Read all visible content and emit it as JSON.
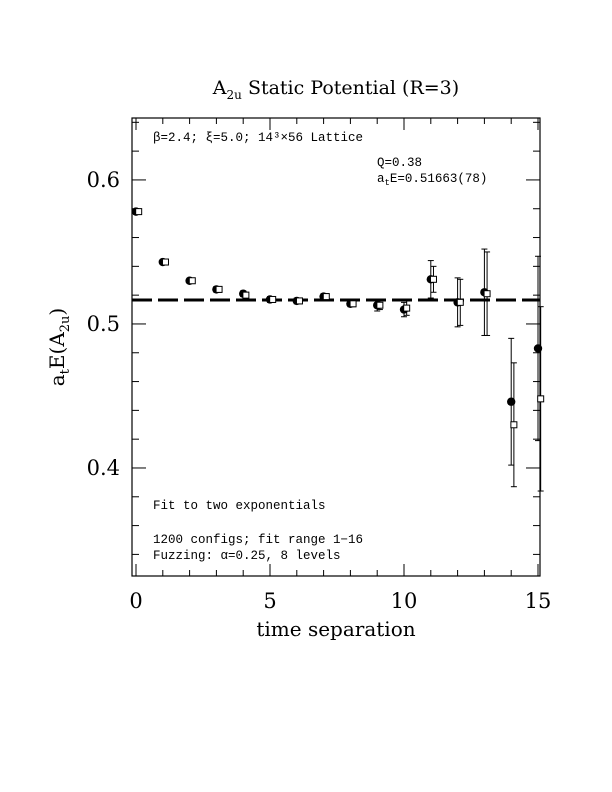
{
  "chart_data": {
    "type": "scatter",
    "title": "A_{2u} Static Potential (R=3)",
    "title_main": "A",
    "title_sub": "2u",
    "title_rest": " Static Potential (R=3)",
    "xlabel": "time separation",
    "ylabel_main": "a",
    "ylabel_sub1": "t",
    "ylabel_mid": "E(A",
    "ylabel_sub2": "2u",
    "ylabel_end": ")",
    "xlim": [
      0,
      15
    ],
    "ylim": [
      0.325,
      0.643
    ],
    "x_ticks": [
      0,
      5,
      10,
      15
    ],
    "x_tick_labels": [
      "0",
      "5",
      "10",
      "15"
    ],
    "y_ticks": [
      0.4,
      0.5,
      0.6
    ],
    "y_tick_labels": [
      "0.4",
      "0.5",
      "0.6"
    ],
    "annotations": {
      "lattice": "β=2.4; ξ=5.0; 14³×56 Lattice",
      "q": "Q=0.38",
      "energy_main": "a",
      "energy_sub": "t",
      "energy_rest": "E=0.51663(78)",
      "fit_type": "Fit to two exponentials",
      "configs": "1200 configs; fit range 1−16",
      "fuzzing": "Fuzzing: α=0.25, 8 levels"
    },
    "fit_line": {
      "y": 0.5166,
      "style": "dashed"
    },
    "series": [
      {
        "marker": "filled-circle",
        "points": [
          {
            "x": 0,
            "y": 0.578,
            "err": 0.001
          },
          {
            "x": 1,
            "y": 0.543,
            "err": 0.001
          },
          {
            "x": 2,
            "y": 0.53,
            "err": 0.0015
          },
          {
            "x": 3,
            "y": 0.524,
            "err": 0.002
          },
          {
            "x": 4,
            "y": 0.521,
            "err": 0.002
          },
          {
            "x": 5,
            "y": 0.517,
            "err": 0.002
          },
          {
            "x": 6,
            "y": 0.516,
            "err": 0.002
          },
          {
            "x": 7,
            "y": 0.519,
            "err": 0.002
          },
          {
            "x": 8,
            "y": 0.514,
            "err": 0.002
          },
          {
            "x": 9,
            "y": 0.513,
            "err": 0.004
          },
          {
            "x": 10,
            "y": 0.51,
            "err": 0.005
          },
          {
            "x": 11,
            "y": 0.531,
            "err": 0.013
          },
          {
            "x": 12,
            "y": 0.515,
            "err": 0.017
          },
          {
            "x": 13,
            "y": 0.522,
            "err": 0.03
          },
          {
            "x": 14,
            "y": 0.446,
            "err": 0.044
          },
          {
            "x": 15,
            "y": 0.483,
            "err": 0.064
          }
        ]
      },
      {
        "marker": "open-square",
        "points": [
          {
            "x": 0.1,
            "y": 0.578,
            "err": 0.001
          },
          {
            "x": 1.1,
            "y": 0.543,
            "err": 0.001
          },
          {
            "x": 2.1,
            "y": 0.53,
            "err": 0.0015
          },
          {
            "x": 3.1,
            "y": 0.524,
            "err": 0.002
          },
          {
            "x": 4.1,
            "y": 0.52,
            "err": 0.002
          },
          {
            "x": 5.1,
            "y": 0.517,
            "err": 0.002
          },
          {
            "x": 6.1,
            "y": 0.516,
            "err": 0.002
          },
          {
            "x": 7.1,
            "y": 0.519,
            "err": 0.002
          },
          {
            "x": 8.1,
            "y": 0.514,
            "err": 0.002
          },
          {
            "x": 9.1,
            "y": 0.513,
            "err": 0.003
          },
          {
            "x": 10.1,
            "y": 0.511,
            "err": 0.005
          },
          {
            "x": 11.1,
            "y": 0.531,
            "err": 0.009
          },
          {
            "x": 12.1,
            "y": 0.515,
            "err": 0.016
          },
          {
            "x": 13.1,
            "y": 0.521,
            "err": 0.029
          },
          {
            "x": 14.1,
            "y": 0.43,
            "err": 0.043
          },
          {
            "x": 15.1,
            "y": 0.448,
            "err": 0.064
          }
        ]
      }
    ]
  }
}
